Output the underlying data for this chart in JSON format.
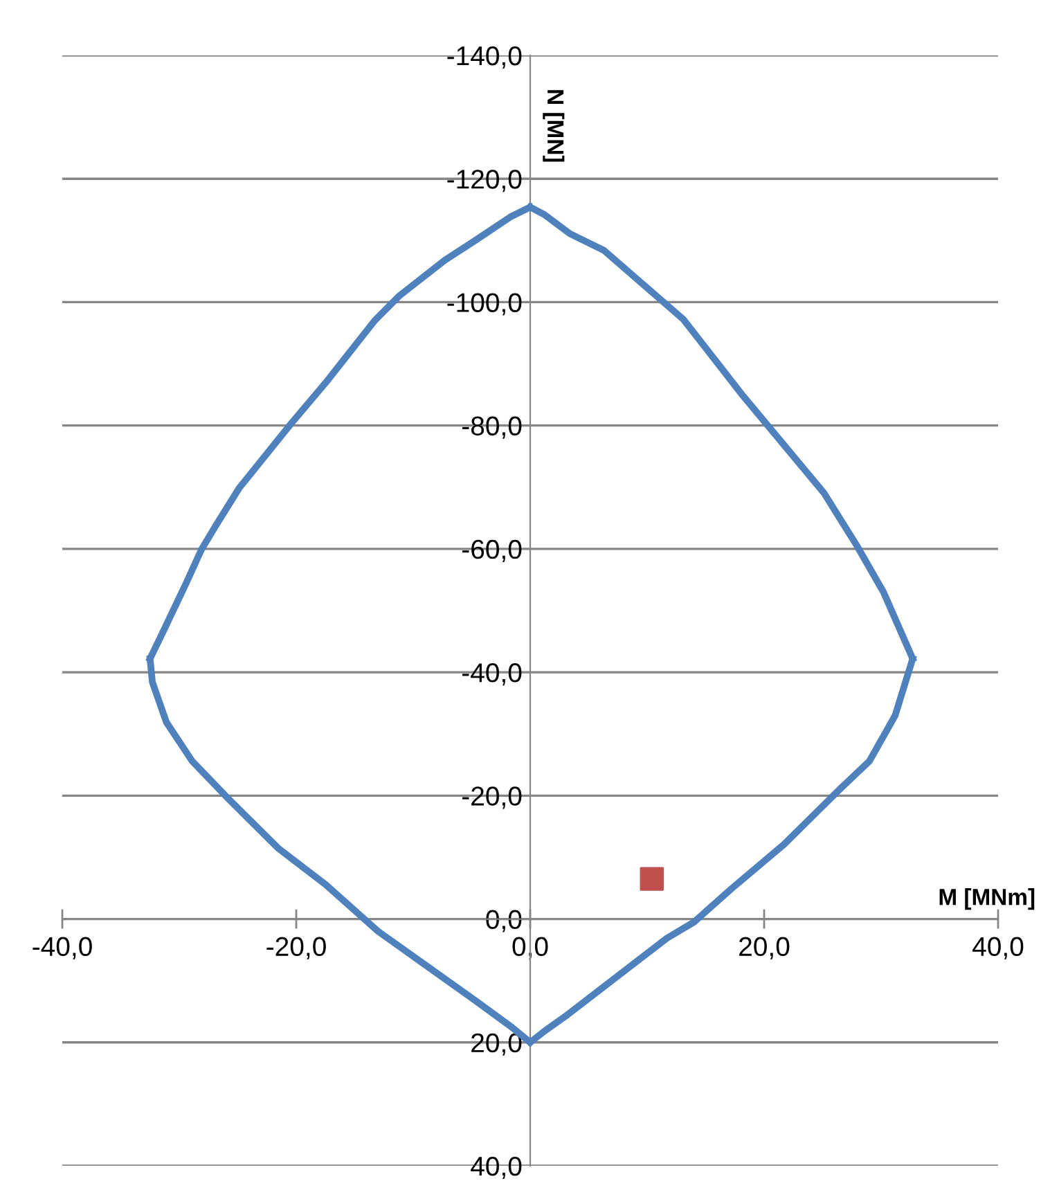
{
  "chart_data": {
    "type": "line",
    "xlabel": "M [MNm]",
    "ylabel": "N [MN]",
    "series": [
      {
        "color": "#4f81bd",
        "marker": "none",
        "x": [
          0,
          -1.7,
          -4.7,
          -7.3,
          -11.2,
          -13.3,
          -17.5,
          -20.4,
          -24.9,
          -26.9,
          -28.1,
          -29.4,
          -31.4,
          -32.5
        ],
        "values": [
          -115.4,
          -113.8,
          -110,
          -106.8,
          -101,
          -97,
          -86.9,
          -80.4,
          -69.8,
          -63.7,
          -59.9,
          -54.5,
          -46.5,
          -42.2
        ]
      },
      {
        "color": "#4f81bd",
        "marker": "none",
        "x": [
          -32.5,
          -32.3,
          -31.1,
          -28.9,
          -25.8,
          -21.5,
          -17.5,
          -13,
          -9,
          -4.7,
          -1.6,
          0
        ],
        "values": [
          -42.2,
          -38.4,
          -31.9,
          -25.6,
          -19.5,
          -11.4,
          -5.6,
          2,
          7.4,
          13.2,
          17.5,
          20
        ]
      },
      {
        "color": "#4f81bd",
        "marker": "none",
        "x": [
          0,
          1.2,
          3.2,
          8.6,
          11.7,
          14,
          17.2,
          21.7,
          26.5,
          29,
          31.2,
          32.7
        ],
        "values": [
          20,
          18.2,
          15.5,
          7.6,
          3.1,
          0.5,
          -4.9,
          -12.1,
          -21.1,
          -25.6,
          -33,
          -42.2
        ]
      },
      {
        "color": "#4f81bd",
        "marker": "none",
        "x": [
          32.7,
          30.2,
          27.9,
          25.1,
          18.2,
          13.1,
          6.3,
          3.4,
          1.2,
          0
        ],
        "values": [
          -42.2,
          -53,
          -60.6,
          -69.1,
          -84.8,
          -97.2,
          -108.4,
          -111.1,
          -114.2,
          -115.4
        ]
      },
      {
        "type": "scatter",
        "color": "#c0504d",
        "marker": "square",
        "x": [
          10.4
        ],
        "values": [
          -6.5
        ]
      }
    ],
    "xlim": [
      -40,
      40
    ],
    "xticks": [
      {
        "value": -40,
        "label": "-40,0"
      },
      {
        "value": -20,
        "label": "-20,0"
      },
      {
        "value": 0,
        "label": "0,0"
      },
      {
        "value": 20,
        "label": "20,0"
      },
      {
        "value": 40,
        "label": "40,0"
      }
    ],
    "ylim": [
      40,
      -140
    ],
    "yticks": [
      {
        "value": -140,
        "label": "-140,0"
      },
      {
        "value": -120,
        "label": "-120,0"
      },
      {
        "value": -100,
        "label": "-100,0"
      },
      {
        "value": -80,
        "label": "-80,0"
      },
      {
        "value": -60,
        "label": "-60,0"
      },
      {
        "value": -40,
        "label": "-40,0"
      },
      {
        "value": -20,
        "label": "-20,0"
      },
      {
        "value": 0,
        "label": "0,0"
      },
      {
        "value": 20,
        "label": "20,0"
      },
      {
        "value": 40,
        "label": "40,0"
      }
    ],
    "grid": "y",
    "legend": false
  }
}
